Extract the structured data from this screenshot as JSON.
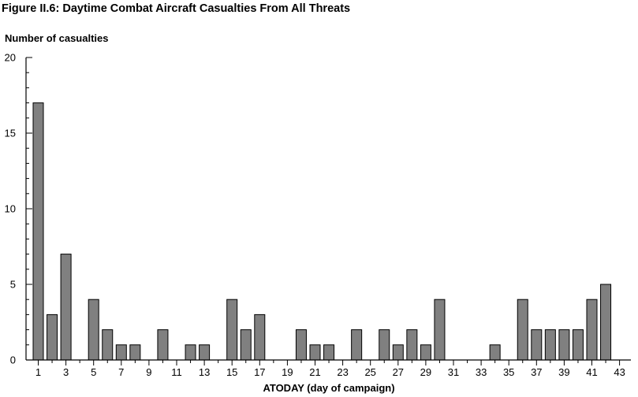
{
  "figure_title": "Figure II.6: Daytime Combat Aircraft Casualties From All Threats",
  "chart_data": {
    "type": "bar",
    "title": "Figure II.6: Daytime Combat Aircraft Casualties From All Threats",
    "ylabel": "Number of casualties",
    "xlabel": "ATODAY (day of campaign)",
    "ylim": [
      0,
      20
    ],
    "y_ticks": [
      0,
      5,
      10,
      15,
      20
    ],
    "xlim": [
      1,
      43
    ],
    "x_ticks": [
      1,
      3,
      5,
      7,
      9,
      11,
      13,
      15,
      17,
      19,
      21,
      23,
      25,
      27,
      29,
      31,
      33,
      35,
      37,
      39,
      41,
      43
    ],
    "categories": [
      1,
      2,
      3,
      4,
      5,
      6,
      7,
      8,
      9,
      10,
      11,
      12,
      13,
      14,
      15,
      16,
      17,
      18,
      19,
      20,
      21,
      22,
      23,
      24,
      25,
      26,
      27,
      28,
      29,
      30,
      31,
      32,
      33,
      34,
      35,
      36,
      37,
      38,
      39,
      40,
      41,
      42,
      43
    ],
    "values": [
      17,
      3,
      7,
      0,
      4,
      2,
      1,
      1,
      0,
      2,
      0,
      1,
      1,
      0,
      4,
      2,
      3,
      0,
      0,
      2,
      1,
      1,
      0,
      2,
      0,
      2,
      1,
      2,
      1,
      4,
      0,
      0,
      0,
      1,
      0,
      4,
      2,
      2,
      2,
      2,
      4,
      5,
      0
    ],
    "bar_color": "#808080",
    "grid": false,
    "legend": "none"
  }
}
